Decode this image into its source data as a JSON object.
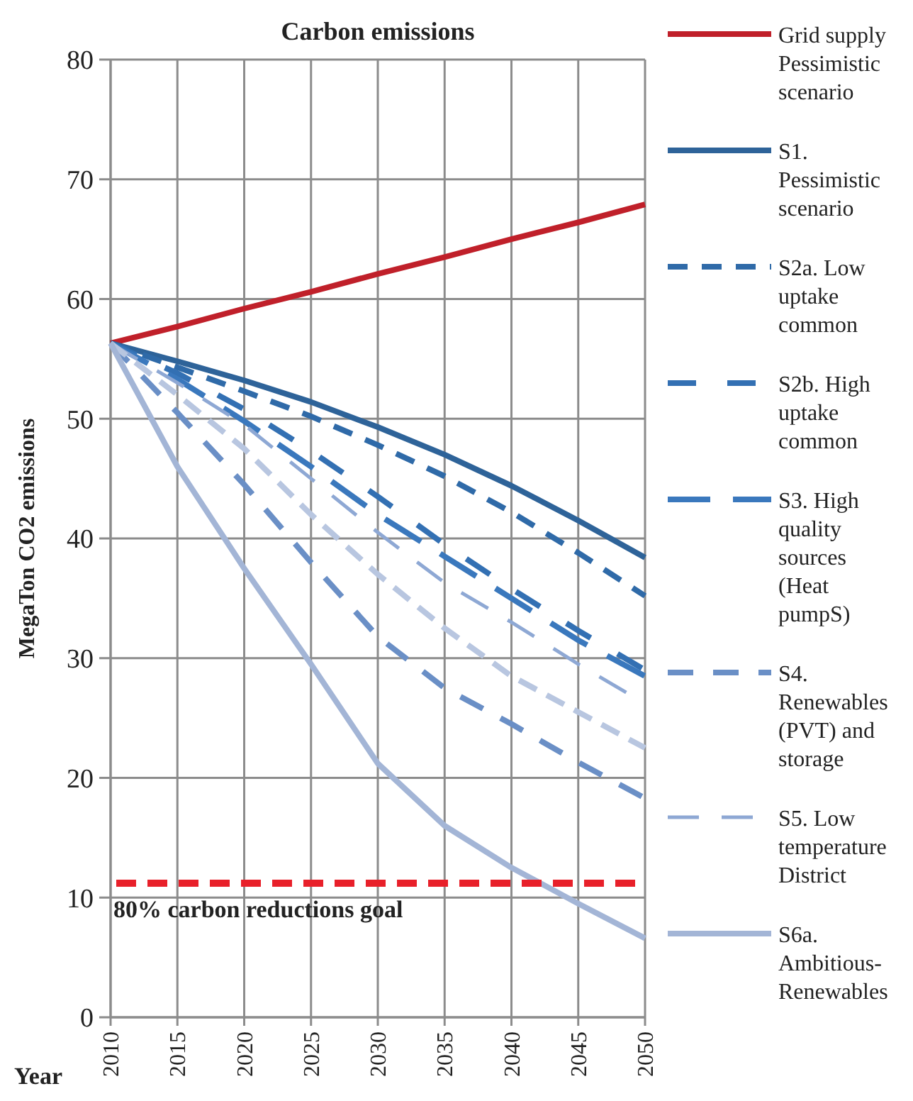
{
  "chart_data": {
    "type": "line",
    "title": "Carbon emissions",
    "xlabel": "Year",
    "ylabel": "MegaTon CO2 emissions",
    "x": [
      2010,
      2015,
      2020,
      2025,
      2030,
      2035,
      2040,
      2045,
      2050
    ],
    "xlim": [
      2010,
      2050
    ],
    "xticks": [
      2010,
      2015,
      2020,
      2025,
      2030,
      2035,
      2040,
      2045,
      2050
    ],
    "ylim": [
      0,
      80
    ],
    "yticks": [
      0,
      10,
      20,
      30,
      40,
      50,
      60,
      70,
      80
    ],
    "grid": true,
    "legend": "right",
    "series": [
      {
        "name": "Grid supply Pessimistic scenario",
        "color": "#c0202a",
        "line_style": "solid",
        "values": [
          56.3,
          57.7,
          59.2,
          60.6,
          62.1,
          63.5,
          65,
          66.4,
          67.9
        ]
      },
      {
        "name": "S1. Pessimistic scenario",
        "color": "#2e6399",
        "line_style": "solid",
        "values": [
          56.3,
          54.8,
          53.2,
          51.4,
          49.3,
          47,
          44.4,
          41.5,
          38.4
        ]
      },
      {
        "name": "S2a. Low uptake common",
        "color": "#2f6aa8",
        "line_style": "dashed",
        "values": [
          56.3,
          54.3,
          52.3,
          50.2,
          47.8,
          45.2,
          42.2,
          38.8,
          35.2
        ]
      },
      {
        "name": "S2b. High uptake common",
        "color": "#3370b3",
        "line_style": "dashed",
        "values": [
          56.3,
          53.8,
          50.8,
          47.3,
          43.5,
          39.5,
          35.8,
          32.3,
          29
        ]
      },
      {
        "name": "S3. High quality sources (Heat pumpS)",
        "color": "#3a78bd",
        "line_style": "dashed",
        "values": [
          56.3,
          53.3,
          49.8,
          46,
          42,
          38.5,
          35,
          31.5,
          28.5
        ]
      },
      {
        "name": "S4. Renewables (PVT) and storage",
        "color": "#6a8fc6",
        "line_style": "dashed",
        "values": [
          56.3,
          50.5,
          44.5,
          38,
          31.8,
          27.5,
          24.5,
          21.3,
          18.3
        ]
      },
      {
        "name": "S5. Low temperature District",
        "color": "#8ea8d4",
        "line_style": "dashed",
        "values": [
          56.3,
          53,
          49.5,
          45,
          40.5,
          36.3,
          33,
          29.5,
          26.2
        ]
      },
      {
        "color": "#b8c6e0",
        "line_style": "dashed",
        "values": [
          56.3,
          52,
          47.5,
          42,
          37,
          32.5,
          28.5,
          25.5,
          22.5
        ]
      },
      {
        "name": "S6a. Ambitious-Renewables",
        "color": "#a3b5d6",
        "line_style": "solid",
        "values": [
          56.3,
          46,
          37.5,
          29.5,
          21.2,
          16,
          12.5,
          9.5,
          6.6
        ]
      }
    ],
    "ref_lines": [
      {
        "axis": "y",
        "value": 11.2,
        "label": "80% carbon reductions goal",
        "color": "#e8202a",
        "line_style": "dashed"
      }
    ]
  }
}
